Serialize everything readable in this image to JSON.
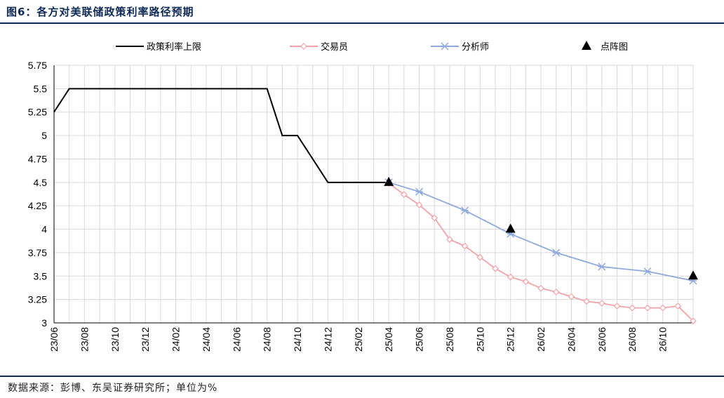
{
  "header": {
    "title": "图6：各方对美联储政策利率路径预期"
  },
  "footer": {
    "source": "数据来源：彭博、东吴证券研究所；单位为%"
  },
  "colors": {
    "policy": "#000000",
    "traders": "#f4a3a8",
    "analysts": "#8ea9db",
    "dotplot": "#000000",
    "grid": "#d9d9d9",
    "accent": "#0d2a57"
  },
  "chart_data": {
    "type": "line",
    "ylim": [
      3,
      5.75
    ],
    "yticks": [
      "5.75",
      "5.5",
      "5.25",
      "5",
      "4.75",
      "4.5",
      "4.25",
      "4",
      "3.75",
      "3.5",
      "3.25",
      "3"
    ],
    "xlim": [
      "2023-06",
      "2026-12"
    ],
    "xticks": [
      "23/06",
      "23/08",
      "23/10",
      "23/12",
      "24/02",
      "24/04",
      "24/06",
      "24/08",
      "24/10",
      "24/12",
      "25/02",
      "25/04",
      "25/06",
      "25/08",
      "25/10",
      "25/12",
      "26/02",
      "26/04",
      "26/06",
      "26/08",
      "26/10"
    ],
    "grid": true,
    "legend_position": "top",
    "series": [
      {
        "name": "政策利率上限",
        "style": "line",
        "points": [
          [
            "2023-06",
            5.25
          ],
          [
            "2023-07",
            5.5
          ],
          [
            "2024-08",
            5.5
          ],
          [
            "2024-09",
            5.0
          ],
          [
            "2024-10",
            5.0
          ],
          [
            "2024-12",
            4.5
          ],
          [
            "2025-04",
            4.5
          ]
        ]
      },
      {
        "name": "交易员",
        "style": "line-diamond",
        "points": [
          [
            "2025-04",
            4.49
          ],
          [
            "2025-05",
            4.37
          ],
          [
            "2025-06",
            4.26
          ],
          [
            "2025-07",
            4.12
          ],
          [
            "2025-08",
            3.89
          ],
          [
            "2025-09",
            3.82
          ],
          [
            "2025-10",
            3.7
          ],
          [
            "2025-11",
            3.58
          ],
          [
            "2025-12",
            3.49
          ],
          [
            "2026-01",
            3.44
          ],
          [
            "2026-02",
            3.37
          ],
          [
            "2026-03",
            3.33
          ],
          [
            "2026-04",
            3.28
          ],
          [
            "2026-05",
            3.23
          ],
          [
            "2026-06",
            3.21
          ],
          [
            "2026-07",
            3.18
          ],
          [
            "2026-08",
            3.16
          ],
          [
            "2026-09",
            3.16
          ],
          [
            "2026-10",
            3.16
          ],
          [
            "2026-11",
            3.18
          ],
          [
            "2026-12",
            3.02
          ]
        ]
      },
      {
        "name": "分析师",
        "style": "line-star",
        "points": [
          [
            "2025-04",
            4.5
          ],
          [
            "2025-06",
            4.4
          ],
          [
            "2025-09",
            4.2
          ],
          [
            "2025-12",
            3.95
          ],
          [
            "2026-03",
            3.75
          ],
          [
            "2026-06",
            3.6
          ],
          [
            "2026-09",
            3.55
          ],
          [
            "2026-12",
            3.45
          ]
        ]
      },
      {
        "name": "点阵图",
        "style": "triangle",
        "points": [
          [
            "2025-04",
            4.5
          ],
          [
            "2025-12",
            4.0
          ],
          [
            "2026-12",
            3.5
          ]
        ]
      }
    ]
  }
}
